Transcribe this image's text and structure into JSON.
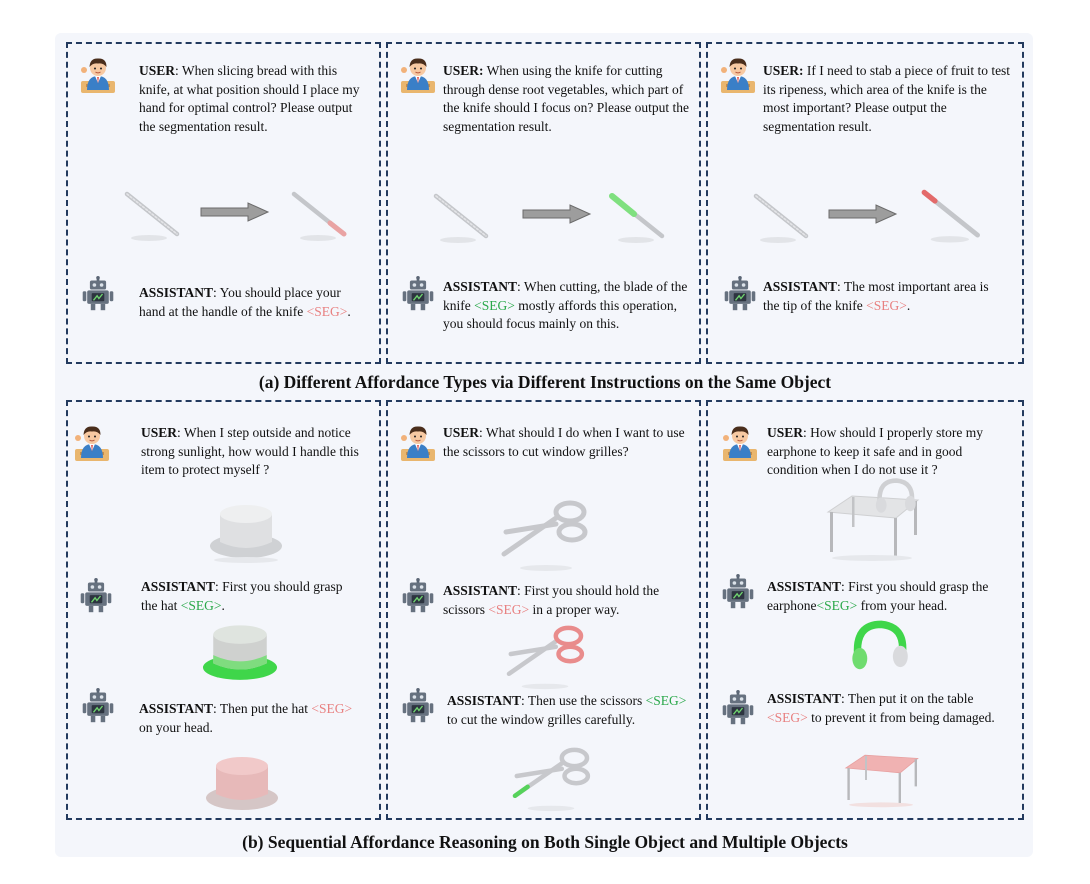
{
  "colors": {
    "border": "#233a5e",
    "seg_red": "#e88080",
    "seg_green": "#2aa84a",
    "bg": "#f4f6fb"
  },
  "icons": {
    "user": "user-avatar-icon",
    "assistant": "robot-assistant-icon",
    "arrow": "right-arrow-icon"
  },
  "section_a": {
    "caption": "(a) Different Affordance Types via Different Instructions on the Same Object",
    "panels": [
      {
        "user_label": "USER",
        "user_text": ": When slicing bread with this knife, at what position should I place my hand for optimal control? Please output the segmentation result.",
        "assistant_label": "ASSISTANT",
        "assistant_pre": ": You should place your hand at the handle of the knife ",
        "seg": "<SEG>",
        "assistant_post": "."
      },
      {
        "user_label": "USER:",
        "user_text": " When using the knife for cutting through dense root vegetables, which part of the knife should I focus on? Please output the segmentation result.",
        "assistant_label": "ASSISTANT",
        "assistant_pre": ": When cutting, the blade of the knife ",
        "seg": "<SEG>",
        "assistant_post": " mostly affords this operation, you should focus mainly on this."
      },
      {
        "user_label": "USER:",
        "user_text": " If I need to stab a piece of fruit to test its ripeness, which area of the knife is the most important? Please output the segmentation result.",
        "assistant_label": "ASSISTANT",
        "assistant_pre": ": The most important area is the tip of the knife ",
        "seg": "<SEG>",
        "assistant_post": "."
      }
    ]
  },
  "section_b": {
    "caption": "(b) Sequential Affordance Reasoning on Both Single Object and Multiple Objects",
    "panels": [
      {
        "user_label": "USER",
        "user_text": ": When I step outside and notice strong sunlight, how would I handle this item to protect myself ?",
        "step1_label": "ASSISTANT",
        "step1_pre": ": First you should grasp the hat ",
        "step1_seg": "<SEG>",
        "step1_post": ".",
        "step2_label": "ASSISTANT",
        "step2_pre": ": Then put the hat ",
        "step2_seg": "<SEG>",
        "step2_post": " on your head."
      },
      {
        "user_label": "USER",
        "user_text": ": What should I do when I want to use the scissors to cut window grilles?",
        "step1_label": "ASSISTANT",
        "step1_pre": ": First you should hold the scissors ",
        "step1_seg": "<SEG>",
        "step1_post": " in a proper way.",
        "step2_label": "ASSISTANT",
        "step2_pre": ": Then use the scissors ",
        "step2_seg": "<SEG>",
        "step2_post": " to cut the window grilles carefully."
      },
      {
        "user_label": "USER",
        "user_text": ": How should I properly store my earphone to keep it safe and in good condition when I do not use it ?",
        "step1_label": "ASSISTANT",
        "step1_pre": ": First you should grasp the earphone",
        "step1_seg": "<SEG>",
        "step1_post": " from your head.",
        "step2_label": "ASSISTANT",
        "step2_pre": ": Then put it on the table ",
        "step2_seg": "<SEG>",
        "step2_post": " to prevent it from being damaged."
      }
    ]
  }
}
